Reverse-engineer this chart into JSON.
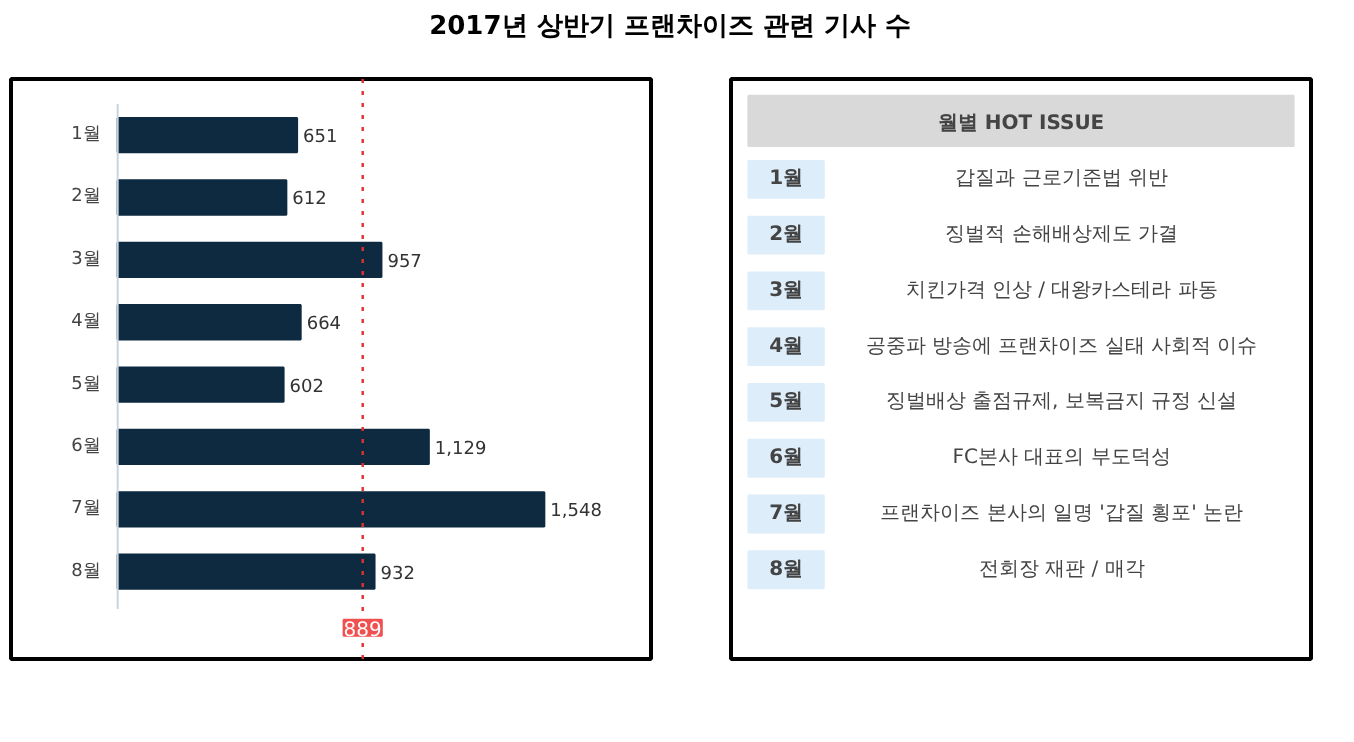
{
  "chart_data": {
    "type": "bar",
    "orientation": "horizontal",
    "title": "2017년 상반기 프랜차이즈 관련 기사 수",
    "categories": [
      "1월",
      "2월",
      "3월",
      "4월",
      "5월",
      "6월",
      "7월",
      "8월"
    ],
    "values": [
      651,
      612,
      957,
      664,
      602,
      1129,
      1548,
      932
    ],
    "value_labels": [
      "651",
      "612",
      "957",
      "664",
      "602",
      "1,129",
      "1,548",
      "932"
    ],
    "color": "#0d2a40",
    "ref_lines": [
      {
        "axis": "x",
        "value": 889,
        "label": "889",
        "color": "#e03030",
        "line_style": "dotted"
      }
    ],
    "grid": false,
    "annotations": [
      "월별 HOT ISSUE",
      "1월",
      "갑질과 근로기준법 위반",
      "2월",
      "징벌적 손해배상제도 가결",
      "3월",
      "치킨가격 인상 / 대왕카스테라 파동",
      "4월",
      "공중파 방송에 프랜차이즈 실태 사회적 이슈",
      "5월",
      "징벌배상 출점규제, 보복금지 규정 신설",
      "6월",
      "FC본사 대표의 부도덕성",
      "7월",
      "프랜차이즈 본사의 일명 '갑질 횡포' 논란",
      "8월",
      "전회장 재판 / 매각"
    ]
  }
}
